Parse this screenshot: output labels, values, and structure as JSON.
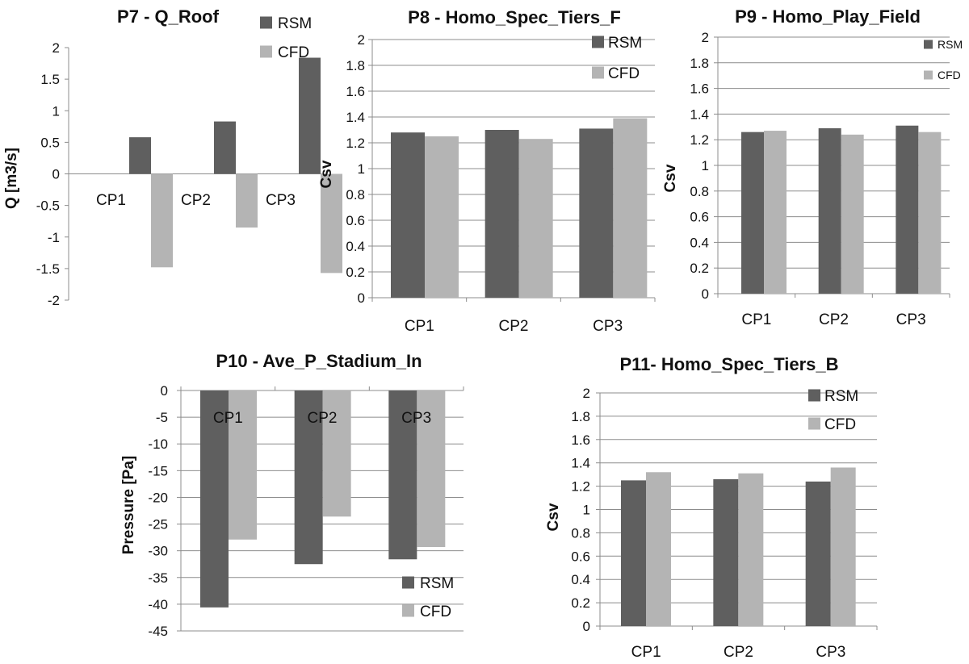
{
  "colors": {
    "RSM": "#5f5f5f",
    "CFD": "#b4b4b4",
    "grid": "#8c8c8c",
    "text": "#111111"
  },
  "chart_data": [
    {
      "type": "bar",
      "title": "P7 - Q_Roof",
      "ylabel": "Q [m3/s]",
      "xlabel": "",
      "categories": [
        "CP1",
        "CP2",
        "CP3"
      ],
      "ylim": [
        -2,
        2
      ],
      "yticks": [
        "2",
        "1.5",
        "1",
        "0.5",
        "0",
        "-0.5",
        "-1",
        "-1.5",
        "-2"
      ],
      "gridlines": false,
      "legend_position": "top-right",
      "series": [
        {
          "name": "RSM",
          "values": [
            0.58,
            0.83,
            1.84
          ]
        },
        {
          "name": "CFD",
          "values": [
            -1.48,
            -0.85,
            -1.57
          ]
        }
      ]
    },
    {
      "type": "bar",
      "title": "P8 - Homo_Spec_Tiers_F",
      "ylabel": "Csv",
      "xlabel": "",
      "categories": [
        "CP1",
        "CP2",
        "CP3"
      ],
      "ylim": [
        0,
        2
      ],
      "yticks": [
        "2",
        "1.8",
        "1.6",
        "1.4",
        "1.2",
        "1",
        "0.8",
        "0.6",
        "0.4",
        "0.2",
        "0"
      ],
      "gridlines": true,
      "legend_position": "top-right",
      "series": [
        {
          "name": "RSM",
          "values": [
            1.28,
            1.3,
            1.31
          ]
        },
        {
          "name": "CFD",
          "values": [
            1.25,
            1.23,
            1.39
          ]
        }
      ]
    },
    {
      "type": "bar",
      "title": "P9 - Homo_Play_Field",
      "ylabel": "Csv",
      "xlabel": "",
      "categories": [
        "CP1",
        "CP2",
        "CP3"
      ],
      "ylim": [
        0,
        2
      ],
      "yticks": [
        "2",
        "1.8",
        "1.6",
        "1.4",
        "1.2",
        "1",
        "0.8",
        "0.6",
        "0.4",
        "0.2",
        "0"
      ],
      "gridlines": true,
      "legend_position": "top-right",
      "series": [
        {
          "name": "RSM",
          "values": [
            1.26,
            1.29,
            1.31
          ]
        },
        {
          "name": "CFD",
          "values": [
            1.27,
            1.24,
            1.26
          ]
        }
      ]
    },
    {
      "type": "bar",
      "title": "P10 - Ave_P_Stadium_In",
      "ylabel": "Pressure [Pa]",
      "xlabel": "",
      "categories": [
        "CP1",
        "CP2",
        "CP3"
      ],
      "ylim": [
        -45,
        0
      ],
      "yticks": [
        "0",
        "-5",
        "-10",
        "-15",
        "-20",
        "-25",
        "-30",
        "-35",
        "-40",
        "-45"
      ],
      "gridlines": true,
      "legend_position": "bottom-right",
      "series": [
        {
          "name": "RSM",
          "values": [
            -40.6,
            -32.5,
            -31.6
          ]
        },
        {
          "name": "CFD",
          "values": [
            -27.9,
            -23.6,
            -29.3
          ]
        }
      ]
    },
    {
      "type": "bar",
      "title": "P11- Homo_Spec_Tiers_B",
      "ylabel": "Csv",
      "xlabel": "",
      "categories": [
        "CP1",
        "CP2",
        "CP3"
      ],
      "ylim": [
        0,
        2
      ],
      "yticks": [
        "2",
        "1.8",
        "1.6",
        "1.4",
        "1.2",
        "1",
        "0.8",
        "0.6",
        "0.4",
        "0.2",
        "0"
      ],
      "gridlines": true,
      "legend_position": "top-right",
      "series": [
        {
          "name": "RSM",
          "values": [
            1.25,
            1.26,
            1.24
          ]
        },
        {
          "name": "CFD",
          "values": [
            1.32,
            1.31,
            1.36
          ]
        }
      ]
    }
  ]
}
